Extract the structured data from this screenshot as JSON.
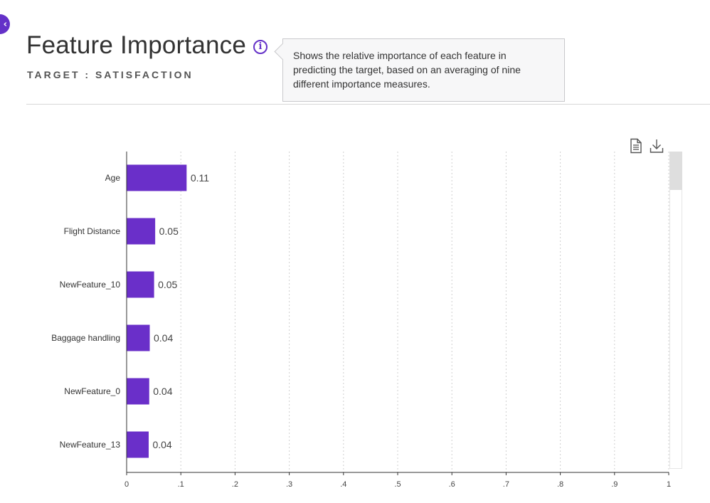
{
  "header": {
    "back_icon_glyph": "‹",
    "title": "Feature Importance",
    "info_icon_glyph": "i",
    "subtitle": "TARGET : SATISFACTION"
  },
  "tooltip": {
    "lines": [
      "Shows the relative importance of each feature in",
      "predicting the target, based on an averaging of nine",
      "different importance measures."
    ]
  },
  "toolbar": {
    "icons": [
      "document-icon",
      "download-icon"
    ]
  },
  "colors": {
    "accent": "#6431c8",
    "bar": "#6a2fc9"
  },
  "chart_data": {
    "type": "bar",
    "orientation": "horizontal",
    "categories": [
      "Age",
      "Flight Distance",
      "NewFeature_10",
      "Baggage handling",
      "NewFeature_0",
      "NewFeature_13"
    ],
    "values": [
      0.11,
      0.052,
      0.05,
      0.042,
      0.041,
      0.04
    ],
    "data_labels": [
      "0.11",
      "0.05",
      "0.05",
      "0.04",
      "0.04",
      "0.04"
    ],
    "xlim": [
      0,
      1
    ],
    "x_ticks": [
      0,
      0.1,
      0.2,
      0.3,
      0.4,
      0.5,
      0.6,
      0.7,
      0.8,
      0.9,
      1
    ],
    "x_tick_labels": [
      "0",
      ".1",
      ".2",
      ".3",
      ".4",
      ".5",
      ".6",
      ".7",
      ".8",
      ".9",
      "1"
    ],
    "grid": "vertical-dashed",
    "legend": "none",
    "title": "",
    "xlabel": "",
    "ylabel": ""
  }
}
